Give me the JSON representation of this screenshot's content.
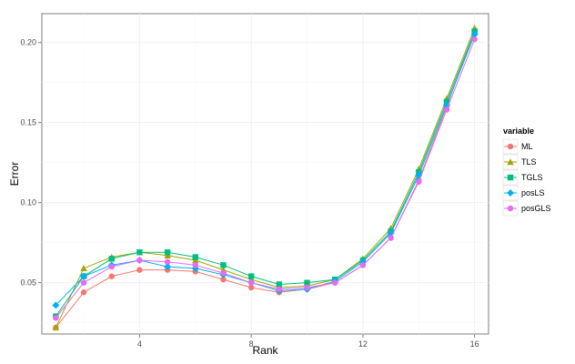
{
  "chart_data": {
    "type": "line",
    "xlabel": "Rank",
    "ylabel": "Error",
    "x": [
      1,
      2,
      3,
      4,
      5,
      6,
      7,
      8,
      9,
      10,
      11,
      12,
      13,
      14,
      15,
      16
    ],
    "xlim": [
      0.5,
      16.5
    ],
    "ylim": [
      0.018,
      0.218
    ],
    "xticks": [
      4,
      8,
      12,
      16
    ],
    "yticks": [
      0.05,
      0.1,
      0.15,
      0.2
    ],
    "xtick_labels": [
      "4",
      "8",
      "12",
      "16"
    ],
    "ytick_labels": [
      "0.05",
      "0.10",
      "0.15",
      "0.20"
    ],
    "grid": true,
    "legend": {
      "title": "variable",
      "position": "right"
    },
    "series": [
      {
        "name": "ML",
        "color": "#F8766D",
        "values": [
          0.022,
          0.044,
          0.054,
          0.058,
          0.058,
          0.057,
          0.052,
          0.047,
          0.044,
          0.046,
          0.05,
          0.061,
          0.078,
          0.114,
          0.16,
          0.207
        ]
      },
      {
        "name": "TLS",
        "color": "#A3A500",
        "values": [
          0.022,
          0.059,
          0.066,
          0.069,
          0.067,
          0.064,
          0.058,
          0.052,
          0.047,
          0.048,
          0.052,
          0.065,
          0.084,
          0.121,
          0.165,
          0.209
        ]
      },
      {
        "name": "TGLS",
        "color": "#00BF7D",
        "values": [
          0.029,
          0.054,
          0.065,
          0.069,
          0.069,
          0.066,
          0.061,
          0.054,
          0.049,
          0.05,
          0.052,
          0.064,
          0.082,
          0.119,
          0.163,
          0.207
        ]
      },
      {
        "name": "posLS",
        "color": "#00B0F6",
        "values": [
          0.036,
          0.054,
          0.061,
          0.064,
          0.06,
          0.059,
          0.055,
          0.05,
          0.045,
          0.046,
          0.051,
          0.063,
          0.081,
          0.117,
          0.161,
          0.205
        ]
      },
      {
        "name": "posGLS",
        "color": "#E76BF3",
        "values": [
          0.028,
          0.05,
          0.06,
          0.064,
          0.063,
          0.061,
          0.056,
          0.05,
          0.046,
          0.047,
          0.05,
          0.061,
          0.078,
          0.113,
          0.158,
          0.202
        ]
      }
    ]
  }
}
